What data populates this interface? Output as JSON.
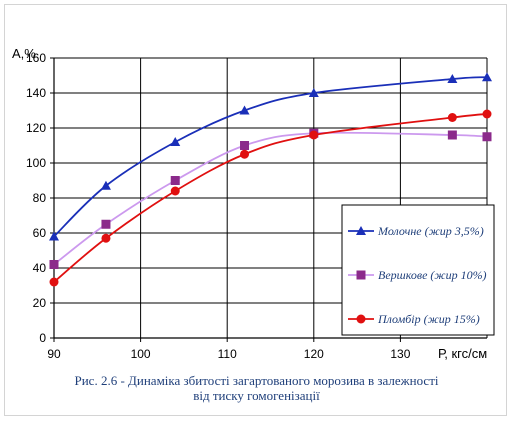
{
  "chart_data": {
    "type": "line",
    "xlabel": "Р, кгс/см",
    "ylabel": "А,%",
    "xlim": [
      90,
      140
    ],
    "ylim": [
      0,
      160
    ],
    "x_ticks": [
      90,
      100,
      110,
      120,
      130
    ],
    "y_ticks": [
      0,
      20,
      40,
      60,
      80,
      100,
      120,
      140,
      160
    ],
    "grid": true,
    "legend_position": "bottom-right",
    "series": [
      {
        "name": "Молочне (жир 3,5%)",
        "color": "#1a2fb8",
        "marker": "triangle",
        "x": [
          90,
          96,
          104,
          112,
          120,
          136,
          140
        ],
        "y": [
          58,
          87,
          112,
          130,
          140,
          148,
          149
        ]
      },
      {
        "name": "Вершкове (жир 10%)",
        "color": "#cc99ee",
        "marker_color": "#8b2a8b",
        "marker": "square",
        "x": [
          90,
          96,
          104,
          112,
          120,
          136,
          140
        ],
        "y": [
          42,
          65,
          90,
          110,
          117,
          116,
          115
        ]
      },
      {
        "name": "Пломбір (жир 15%)",
        "color": "#e01010",
        "marker": "circle",
        "x": [
          90,
          96,
          104,
          112,
          120,
          136,
          140
        ],
        "y": [
          32,
          57,
          84,
          105,
          116,
          126,
          128
        ]
      }
    ]
  },
  "caption": {
    "line1": "Рис. 2.6 -  Динаміка збитості загартованого морозива в залежності",
    "line2": "від тиску гомогенізації"
  }
}
